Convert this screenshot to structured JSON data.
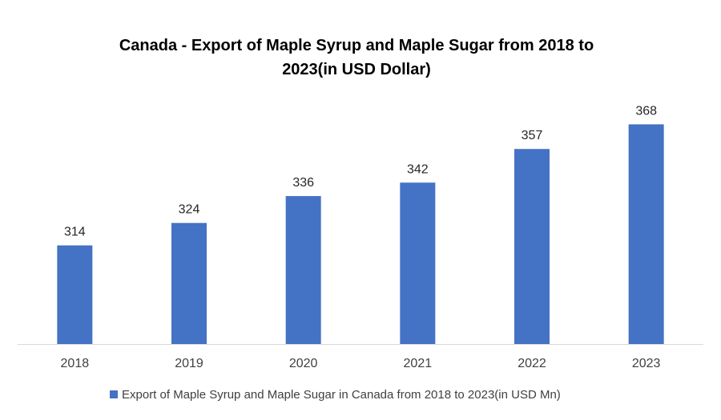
{
  "chart_data": {
    "type": "bar",
    "title_lines": [
      "Canada  - Export of Maple Syrup and Maple Sugar from 2018 to",
      "2023(in USD Dollar)"
    ],
    "categories": [
      "2018",
      "2019",
      "2020",
      "2021",
      "2022",
      "2023"
    ],
    "series": [
      {
        "name": "Export of Maple Syrup and Maple Sugar in Canada from 2018 to 2023(in USD Mn)",
        "values": [
          314,
          324,
          336,
          342,
          357,
          368
        ],
        "color": "#4472C4"
      }
    ],
    "ylim": [
      270,
      376
    ],
    "grid": false,
    "legend_position": "bottom-center",
    "axis_color": "#D9D9D9"
  }
}
